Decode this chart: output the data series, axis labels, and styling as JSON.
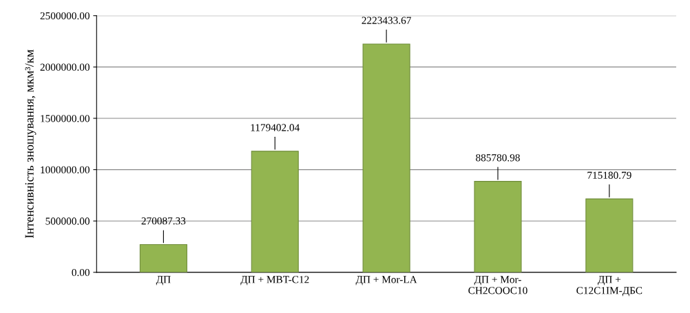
{
  "chart_data": {
    "type": "bar",
    "categories": [
      "ДП",
      "ДП + MBT-C12",
      "ДП + Mor-LA",
      "ДП + Mor-\nCH2COOC10",
      "ДП +\nC12C1IM-ДБС"
    ],
    "values": [
      270087.33,
      1179402.04,
      2223433.67,
      885780.98,
      715180.79
    ],
    "color": "#93b550",
    "ylabel": "Інтенсивність зношування, мкм³/км",
    "ylim": [
      0,
      2500000
    ],
    "yticks": [
      {
        "value": 0,
        "label": "0.00"
      },
      {
        "value": 500000,
        "label": "500000.00"
      },
      {
        "value": 1000000,
        "label": "1000000.00"
      },
      {
        "value": 1500000,
        "label": "1500000.00"
      },
      {
        "value": 2000000,
        "label": "2000000.00"
      },
      {
        "value": 2500000,
        "label": "2500000.00"
      }
    ],
    "grid": "y",
    "data_labels": true
  }
}
